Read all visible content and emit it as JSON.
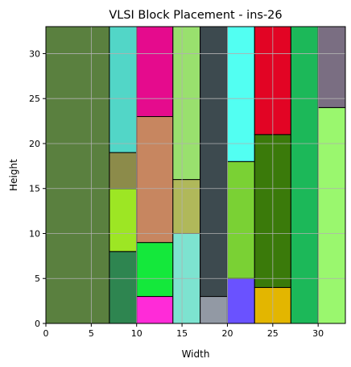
{
  "chart_data": {
    "type": "rect-placement",
    "title": "VLSI Block Placement - ins-26",
    "xlabel": "Width",
    "ylabel": "Height",
    "xlim": [
      0,
      33
    ],
    "ylim": [
      0,
      33
    ],
    "grid": true,
    "x_ticks": [
      0,
      5,
      10,
      15,
      20,
      25,
      30
    ],
    "y_ticks": [
      0,
      5,
      10,
      15,
      20,
      25,
      30
    ],
    "blocks": [
      {
        "x": 0,
        "y": 0,
        "w": 7,
        "h": 33,
        "color": "#5a803f"
      },
      {
        "x": 7,
        "y": 0,
        "w": 3,
        "h": 8,
        "color": "#2e8550"
      },
      {
        "x": 7,
        "y": 8,
        "w": 3,
        "h": 7,
        "color": "#9de624"
      },
      {
        "x": 7,
        "y": 15,
        "w": 3,
        "h": 4,
        "color": "#8c8b4a"
      },
      {
        "x": 7,
        "y": 19,
        "w": 3,
        "h": 14,
        "color": "#52d6c7"
      },
      {
        "x": 10,
        "y": 0,
        "w": 4,
        "h": 3,
        "color": "#ff2bd8"
      },
      {
        "x": 10,
        "y": 3,
        "w": 4,
        "h": 6,
        "color": "#14e83b"
      },
      {
        "x": 10,
        "y": 9,
        "w": 4,
        "h": 14,
        "color": "#c78660"
      },
      {
        "x": 10,
        "y": 23,
        "w": 4,
        "h": 10,
        "color": "#e50b8d"
      },
      {
        "x": 14,
        "y": 0,
        "w": 3,
        "h": 10,
        "color": "#7de3d0"
      },
      {
        "x": 14,
        "y": 10,
        "w": 3,
        "h": 6,
        "color": "#b0b85a"
      },
      {
        "x": 14,
        "y": 16,
        "w": 3,
        "h": 17,
        "color": "#99e06e"
      },
      {
        "x": 17,
        "y": 0,
        "w": 3,
        "h": 3,
        "color": "#9299a4"
      },
      {
        "x": 17,
        "y": 3,
        "w": 3,
        "h": 30,
        "color": "#3d4a4f"
      },
      {
        "x": 20,
        "y": 0,
        "w": 3,
        "h": 5,
        "color": "#6a52ff"
      },
      {
        "x": 20,
        "y": 5,
        "w": 3,
        "h": 13,
        "color": "#7ad134"
      },
      {
        "x": 20,
        "y": 18,
        "w": 3,
        "h": 15,
        "color": "#52fff2"
      },
      {
        "x": 23,
        "y": 0,
        "w": 4,
        "h": 4,
        "color": "#e3b600"
      },
      {
        "x": 23,
        "y": 4,
        "w": 4,
        "h": 17,
        "color": "#3a7a0a"
      },
      {
        "x": 23,
        "y": 21,
        "w": 4,
        "h": 12,
        "color": "#e20424"
      },
      {
        "x": 27,
        "y": 0,
        "w": 3,
        "h": 33,
        "color": "#1cb859"
      },
      {
        "x": 30,
        "y": 0,
        "w": 3,
        "h": 24,
        "color": "#9af76e"
      },
      {
        "x": 30,
        "y": 24,
        "w": 3,
        "h": 9,
        "color": "#7a6e82"
      }
    ]
  }
}
